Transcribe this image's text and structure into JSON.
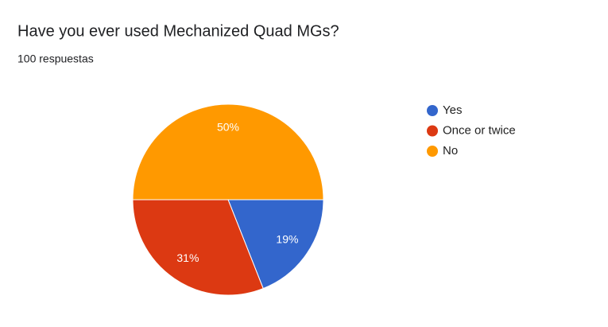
{
  "chart_data": {
    "type": "pie",
    "title": "Have you ever used Mechanized Quad MGs?",
    "subtitle": "100 respuestas",
    "categories": [
      "Yes",
      "Once or twice",
      "No"
    ],
    "values": [
      19,
      31,
      50
    ],
    "value_labels": [
      "19%",
      "31%",
      "50%"
    ],
    "colors": [
      "#3366cc",
      "#dc3912",
      "#ff9900"
    ],
    "legend": "right"
  }
}
